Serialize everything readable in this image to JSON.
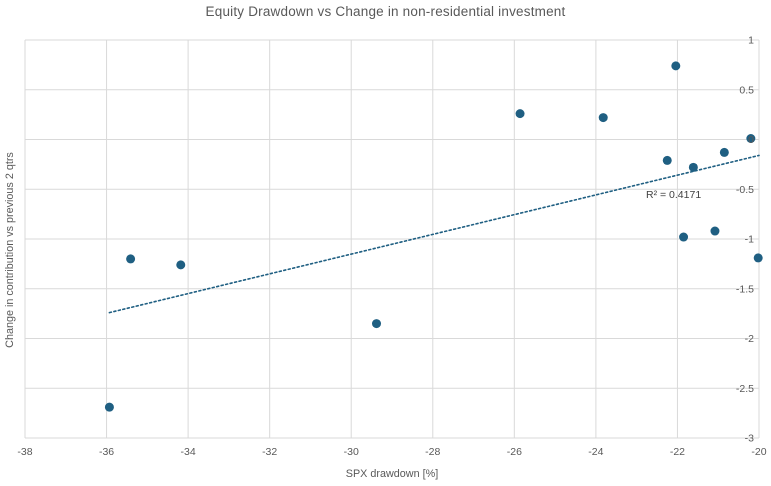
{
  "chart_data": {
    "type": "scatter",
    "title": "Equity Drawdown vs Change in non-residential investment",
    "xlabel": "SPX drawdown [%]",
    "ylabel": "Change in contribution vs previous 2 qtrs",
    "xlim": [
      -38,
      -20
    ],
    "ylim": [
      -3,
      1
    ],
    "x_ticks": [
      -38,
      -36,
      -34,
      -32,
      -30,
      -28,
      -26,
      -24,
      -22,
      -20
    ],
    "y_ticks": [
      1,
      0.5,
      0,
      -0.5,
      -1,
      -1.5,
      -2,
      -2.5,
      -3
    ],
    "grid": true,
    "legend": "none",
    "y_axis_side": "right",
    "points": [
      [
        -35.93,
        -2.69
      ],
      [
        -35.41,
        -1.2
      ],
      [
        -34.18,
        -1.26
      ],
      [
        -29.38,
        -1.85
      ],
      [
        -25.86,
        0.26
      ],
      [
        -23.82,
        0.22
      ],
      [
        -22.04,
        0.74
      ],
      [
        -22.25,
        -0.21
      ],
      [
        -21.61,
        -0.28
      ],
      [
        -21.85,
        -0.98
      ],
      [
        -21.08,
        -0.92
      ],
      [
        -20.85,
        -0.13
      ],
      [
        -20.2,
        0.01
      ],
      [
        -20.02,
        -1.19
      ]
    ],
    "trendline": {
      "style": "dotted",
      "x1": -35.93,
      "y1": -1.74,
      "x2": -20.0,
      "y2": -0.16
    },
    "r2_label": "R² = 0.4171",
    "colors": {
      "point": "#1f5f82",
      "trendline": "#1f5f82",
      "gridline": "#d9d9d9",
      "tick_text": "#595959",
      "title_text": "#595959",
      "annotation_text": "#404040",
      "background": "#ffffff"
    }
  }
}
